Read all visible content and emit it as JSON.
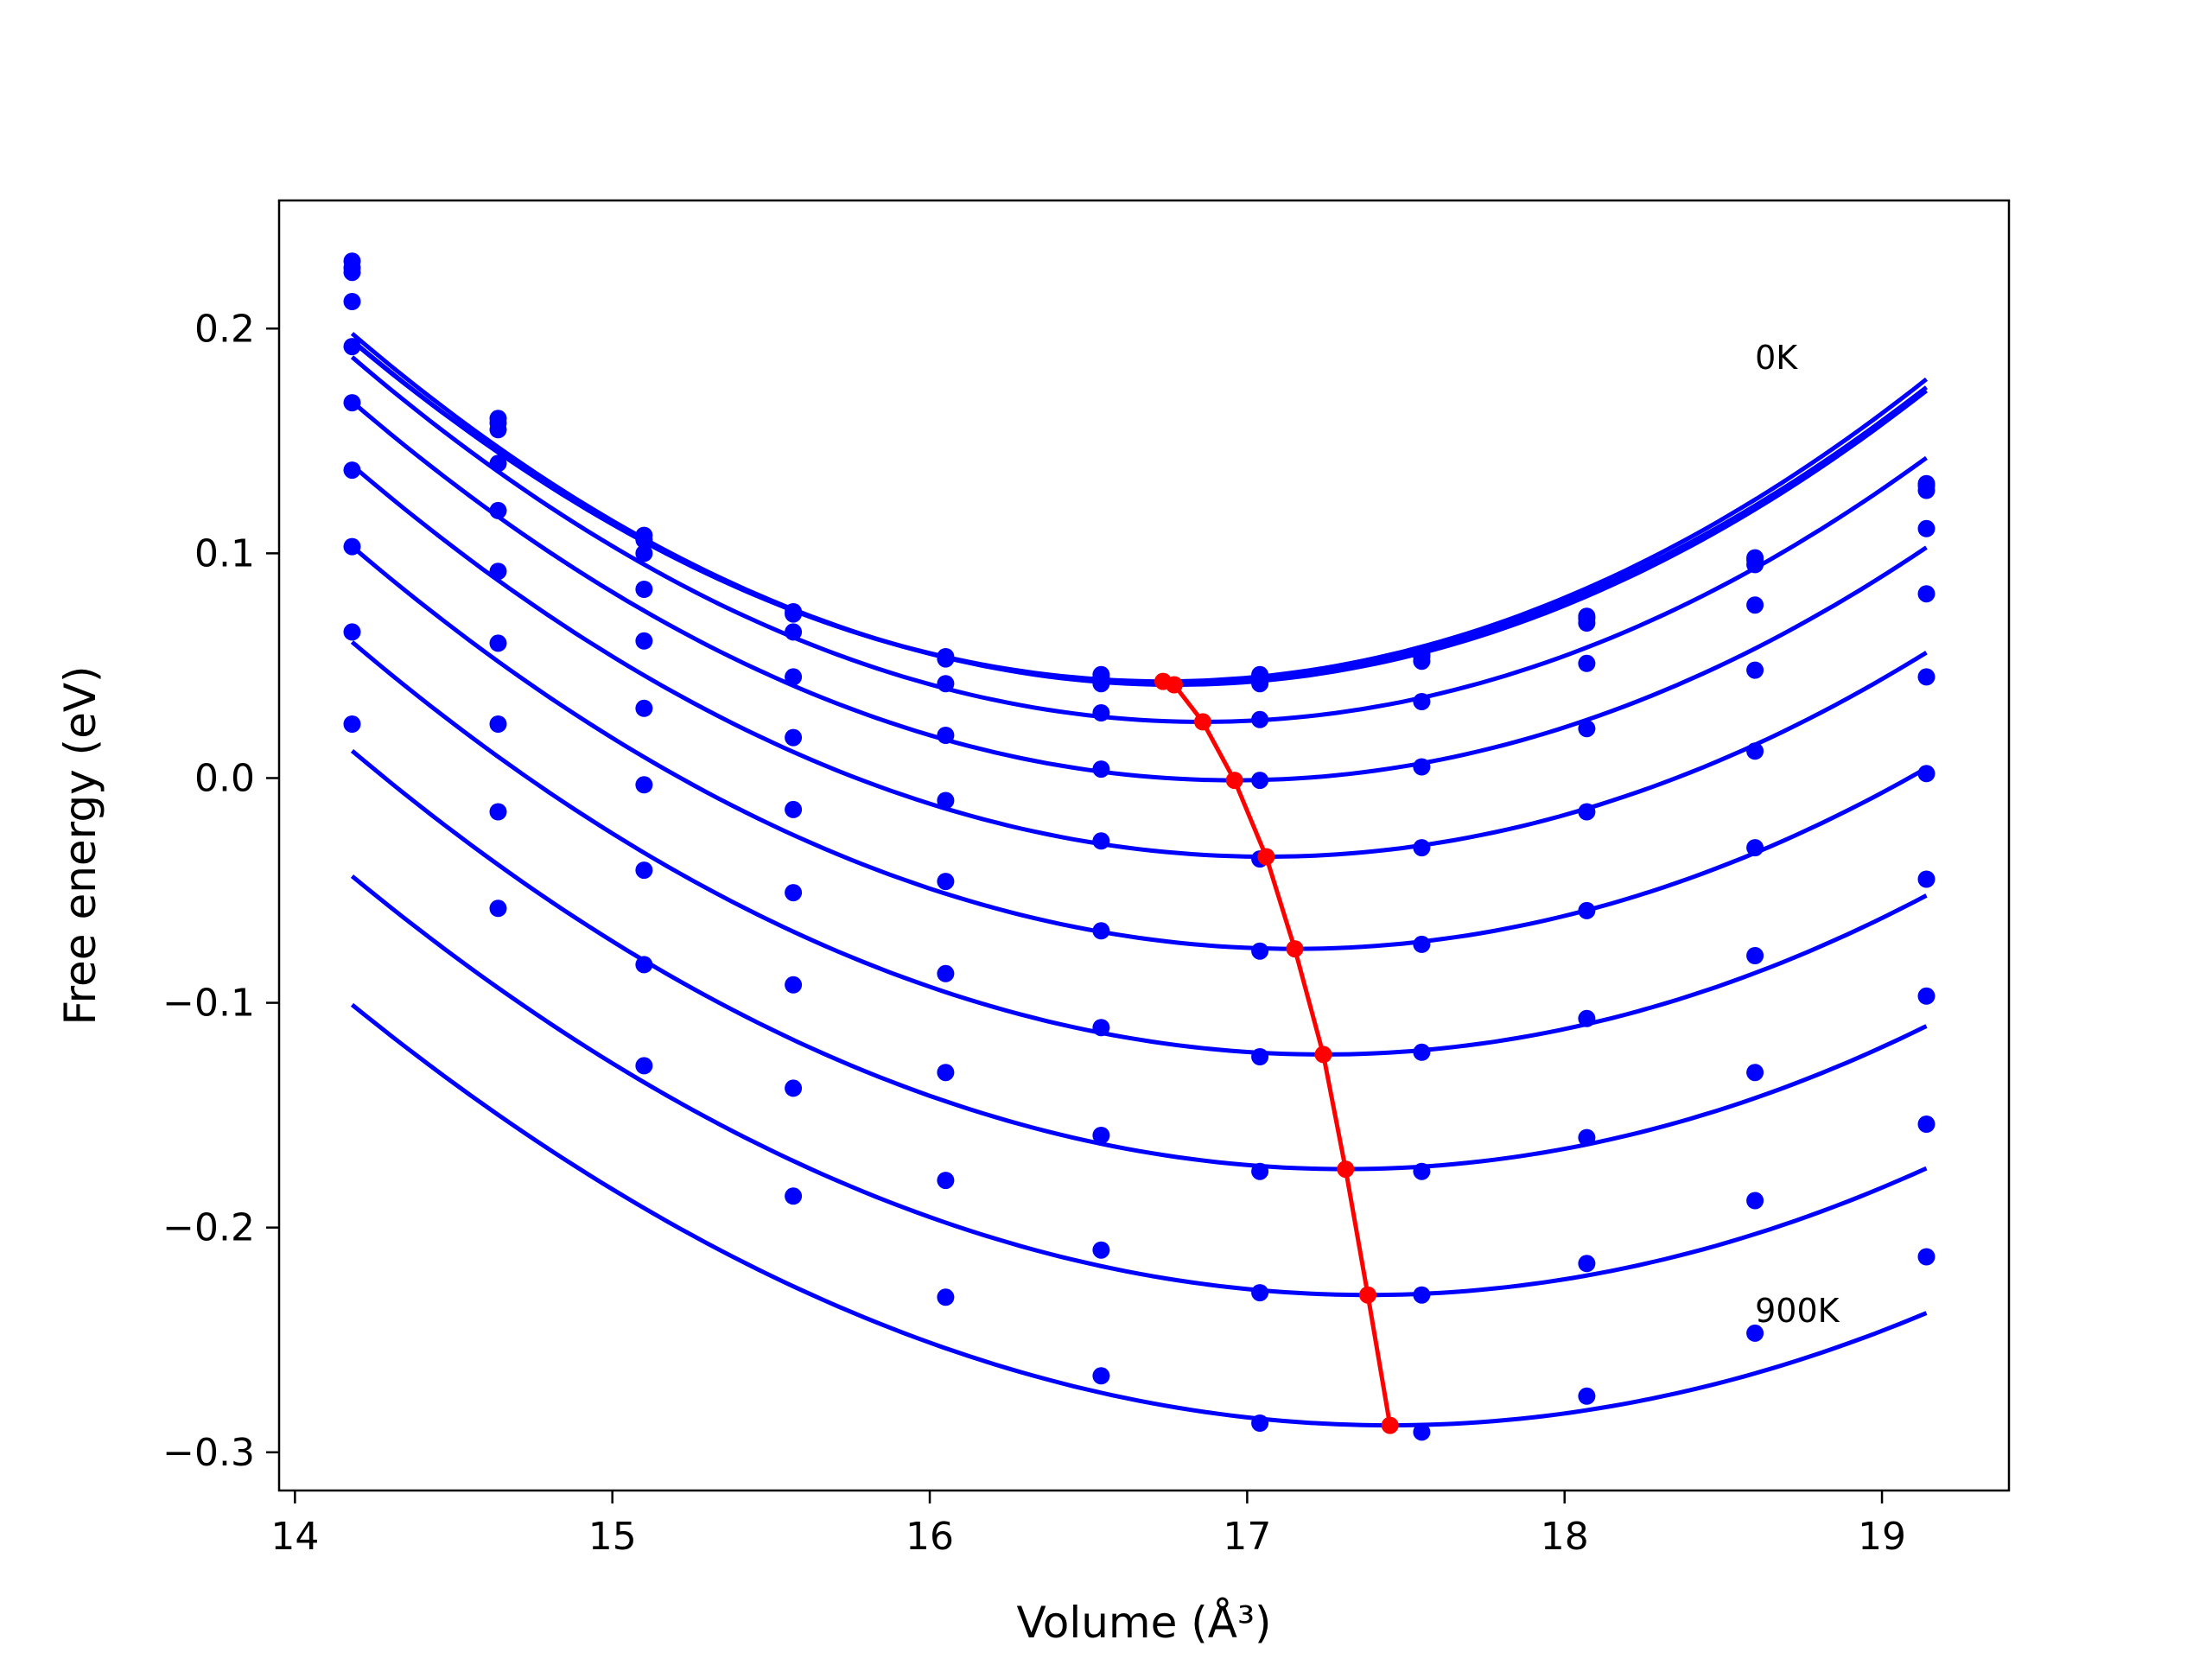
{
  "chart_data": {
    "type": "line",
    "xlabel": "Volume (Å³)",
    "ylabel": "Free energy (eV)",
    "xlim": [
      13.95,
      19.4
    ],
    "ylim": [
      -0.317,
      0.257
    ],
    "xticks": [
      {
        "value": 14,
        "label": "14"
      },
      {
        "value": 15,
        "label": "15"
      },
      {
        "value": 16,
        "label": "16"
      },
      {
        "value": 17,
        "label": "17"
      },
      {
        "value": 18,
        "label": "18"
      },
      {
        "value": 19,
        "label": "19"
      }
    ],
    "yticks": [
      {
        "value": 0.2,
        "label": "0.2"
      },
      {
        "value": 0.1,
        "label": "0.1"
      },
      {
        "value": 0.0,
        "label": "0.0"
      },
      {
        "value": -0.1,
        "label": "−0.1"
      },
      {
        "value": -0.2,
        "label": "−0.2"
      },
      {
        "value": -0.3,
        "label": "−0.3"
      }
    ],
    "annotations": [
      {
        "text": "0K",
        "x": 18.6,
        "y": 0.182
      },
      {
        "text": "900K",
        "x": 18.6,
        "y": -0.242
      }
    ],
    "grid": false,
    "legend": "none",
    "colors": {
      "curves": "#0000ff",
      "minima": "#ff0000"
    },
    "volumes": [
      14.18,
      14.64,
      15.1,
      15.57,
      16.05,
      16.54,
      17.04,
      17.55,
      18.07,
      18.6,
      19.14
    ],
    "series": [
      {
        "points": [
          0.23,
          0.16,
          0.108,
          0.074,
          0.054,
          0.046,
          0.046,
          0.055,
          0.072,
          0.098,
          0.131
        ],
        "fit": {
          "a": 0.02325,
          "v0": 16.735,
          "e0": 0.043
        }
      },
      {
        "points": [
          0.227,
          0.158,
          0.106,
          0.073,
          0.053,
          0.045,
          0.045,
          0.054,
          0.071,
          0.097,
          0.13
        ],
        "fit": {
          "a": 0.023,
          "v0": 16.75,
          "e0": 0.0425
        }
      },
      {
        "points": [
          0.225,
          0.155,
          0.1,
          0.065,
          0.042,
          0.042,
          0.042,
          0.052,
          0.069,
          0.095,
          0.128
        ],
        "fit": {
          "a": 0.0233,
          "v0": 16.77,
          "e0": 0.0415
        }
      },
      {
        "points": [
          0.212,
          0.14,
          0.084,
          0.045,
          0.019,
          0.029,
          0.026,
          0.034,
          0.051,
          0.077,
          0.111
        ],
        "fit": {
          "a": 0.0226,
          "v0": 16.86,
          "e0": 0.025
        }
      },
      {
        "points": [
          0.192,
          0.119,
          0.061,
          0.018,
          -0.01,
          0.004,
          -0.001,
          0.005,
          0.022,
          0.048,
          0.082
        ],
        "fit": {
          "a": 0.0218,
          "v0": 16.96,
          "e0": -0.001
        }
      },
      {
        "points": [
          0.167,
          0.092,
          0.031,
          -0.014,
          -0.046,
          -0.028,
          -0.036,
          -0.031,
          -0.015,
          0.012,
          0.045
        ],
        "fit": {
          "a": 0.021,
          "v0": 17.06,
          "e0": -0.035
        }
      },
      {
        "points": [
          0.137,
          0.06,
          -0.003,
          -0.051,
          -0.087,
          -0.068,
          -0.077,
          -0.074,
          -0.059,
          -0.031,
          0.002
        ],
        "fit": {
          "a": 0.0203,
          "v0": 17.15,
          "e0": -0.076
        }
      },
      {
        "points": [
          0.103,
          0.024,
          -0.041,
          -0.092,
          -0.131,
          -0.111,
          -0.124,
          -0.122,
          -0.107,
          -0.079,
          -0.045
        ],
        "fit": {
          "a": 0.0196,
          "v0": 17.24,
          "e0": -0.123
        }
      },
      {
        "points": [
          0.065,
          -0.015,
          -0.083,
          -0.138,
          -0.179,
          -0.159,
          -0.175,
          -0.175,
          -0.16,
          -0.131,
          -0.097
        ],
        "fit": {
          "a": 0.019,
          "v0": 17.31,
          "e0": -0.174
        }
      },
      {
        "points": [
          0.024,
          -0.058,
          -0.128,
          -0.186,
          -0.231,
          -0.21,
          -0.229,
          -0.23,
          -0.216,
          -0.188,
          -0.154
        ],
        "fit": {
          "a": 0.0182,
          "v0": 17.38,
          "e0": -0.23
        }
      },
      {
        "points": [
          null,
          null,
          null,
          null,
          null,
          -0.266,
          -0.287,
          -0.291,
          -0.275,
          -0.247,
          -0.213
        ],
        "fit": {
          "a": 0.0175,
          "v0": 17.45,
          "e0": -0.288
        }
      }
    ],
    "minima_line": [
      [
        16.735,
        0.043
      ],
      [
        16.77,
        0.0415
      ],
      [
        16.86,
        0.025
      ],
      [
        16.96,
        -0.001
      ],
      [
        17.06,
        -0.035
      ],
      [
        17.15,
        -0.076
      ],
      [
        17.24,
        -0.123
      ],
      [
        17.31,
        -0.174
      ],
      [
        17.38,
        -0.23
      ],
      [
        17.45,
        -0.288
      ]
    ]
  }
}
